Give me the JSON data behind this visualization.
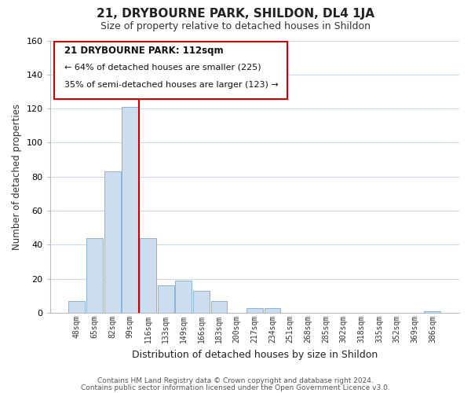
{
  "title": "21, DRYBOURNE PARK, SHILDON, DL4 1JA",
  "subtitle": "Size of property relative to detached houses in Shildon",
  "xlabel": "Distribution of detached houses by size in Shildon",
  "ylabel": "Number of detached properties",
  "footer_lines": [
    "Contains HM Land Registry data © Crown copyright and database right 2024.",
    "Contains public sector information licensed under the Open Government Licence v3.0."
  ],
  "bar_labels": [
    "48sqm",
    "65sqm",
    "82sqm",
    "99sqm",
    "116sqm",
    "133sqm",
    "149sqm",
    "166sqm",
    "183sqm",
    "200sqm",
    "217sqm",
    "234sqm",
    "251sqm",
    "268sqm",
    "285sqm",
    "302sqm",
    "318sqm",
    "335sqm",
    "352sqm",
    "369sqm",
    "386sqm"
  ],
  "bar_heights": [
    7,
    44,
    83,
    121,
    44,
    16,
    19,
    13,
    7,
    0,
    3,
    3,
    0,
    0,
    0,
    0,
    0,
    0,
    0,
    0,
    1
  ],
  "bar_color": "#ccddf0",
  "bar_edge_color": "#8ab4d4",
  "vline_x_index": 3,
  "vline_color": "#cc0000",
  "ylim": [
    0,
    160
  ],
  "yticks": [
    0,
    20,
    40,
    60,
    80,
    100,
    120,
    140,
    160
  ],
  "annotation_box": {
    "title": "21 DRYBOURNE PARK: 112sqm",
    "line1": "← 64% of detached houses are smaller (225)",
    "line2": "35% of semi-detached houses are larger (123) →"
  },
  "annotation_box_edgecolor": "#cc0000",
  "annotation_box_facecolor": "#ffffff",
  "background_color": "#ffffff",
  "grid_color": "#ccd9e8"
}
